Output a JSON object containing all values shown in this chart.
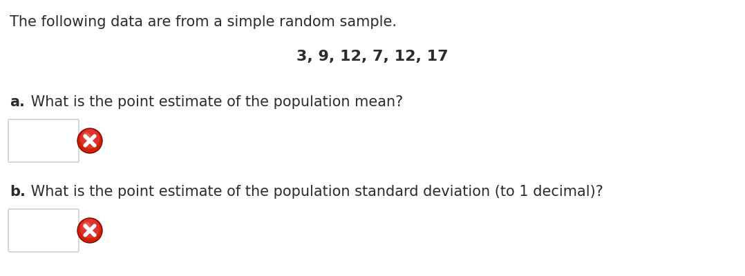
{
  "bg_color": "#ffffff",
  "line1": "The following data are from a simple random sample.",
  "line1_fontsize": 15.0,
  "data_line": "3, 9, 12, 7, 12, 17",
  "data_line_fontsize": 16.0,
  "question_a_bold": "a.",
  "question_a_text": " What is the point estimate of the population mean?",
  "question_a_fontsize": 15.0,
  "question_b_bold": "b.",
  "question_b_text": " What is the point estimate of the population standard deviation (to 1 decimal)?",
  "question_b_fontsize": 15.0,
  "text_color": "#2c2c2c",
  "box_edge_color": "#c8c8c8",
  "box_face_color": "#ffffff",
  "icon_outer_color": "#b52020",
  "icon_mid_color": "#d03030",
  "icon_dark_color": "#7a1010",
  "icon_white": "#ffffff",
  "font_family": "DejaVu Sans"
}
